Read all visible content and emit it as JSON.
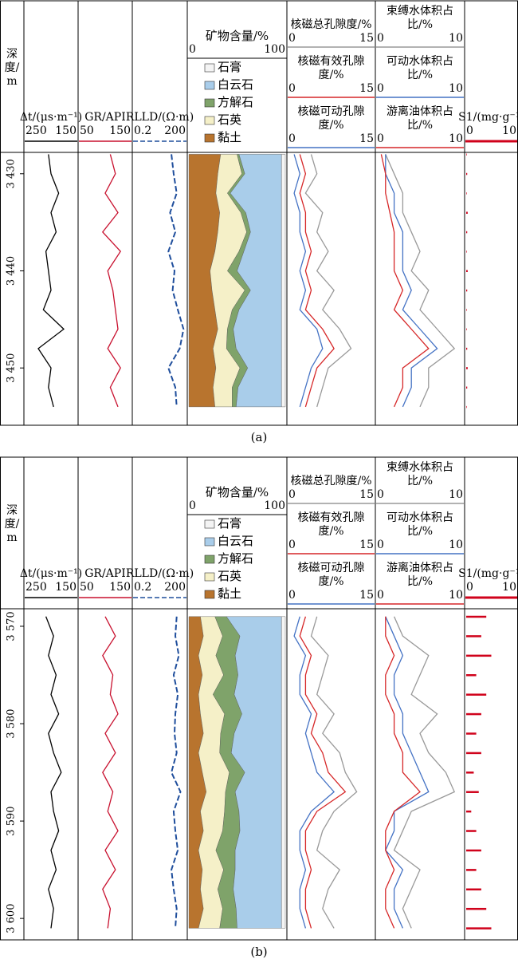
{
  "chart_data": [
    {
      "type": "well_log",
      "caption": "(a)",
      "depth_label": "深度/m",
      "ylim": [
        3427.8,
        3455.9
      ],
      "yticks": [
        {
          "value": 3430,
          "label": "3 430"
        },
        {
          "value": 3440,
          "label": "3 440"
        },
        {
          "value": 3450,
          "label": "3 450"
        }
      ],
      "depths": [
        3428,
        3430,
        3432,
        3434,
        3436,
        3438,
        3440,
        3442,
        3444,
        3446,
        3448,
        3450,
        3452,
        3454
      ],
      "tracks": [
        {
          "type": "line",
          "xlim": [
            250,
            150
          ],
          "series": [
            {
              "name": "Δt/(μs·m⁻¹)",
              "color": "#000000",
              "values": [
                205,
                200,
                185,
                200,
                190,
                210,
                205,
                200,
                215,
                175,
                225,
                200,
                205,
                195
              ]
            }
          ]
        },
        {
          "type": "line",
          "xlim": [
            50,
            150
          ],
          "series": [
            {
              "name": "GR/API",
              "color": "#c8102e",
              "values": [
                110,
                120,
                100,
                125,
                95,
                130,
                105,
                115,
                120,
                125,
                105,
                130,
                110,
                125
              ]
            }
          ]
        },
        {
          "type": "line",
          "xlim": [
            0.2,
            200
          ],
          "log_scale": true,
          "series": [
            {
              "name": "RLLD/(Ω·m)",
              "color": "#1f4e9c",
              "dash": true,
              "values": [
                30,
                40,
                60,
                25,
                50,
                20,
                45,
                35,
                70,
                150,
                90,
                20,
                50,
                60
              ]
            }
          ]
        },
        {
          "type": "stacked_area",
          "title": "矿物含量/%",
          "xlim": [
            0,
            100
          ],
          "series": [
            {
              "name": "黏土",
              "color": "#b8742e",
              "values": [
                33,
                30,
                28,
                32,
                30,
                27,
                22,
                24,
                27,
                30,
                25,
                28,
                25,
                27
              ]
            },
            {
              "name": "石英",
              "color": "#f5f0c8",
              "values": [
                17,
                25,
                12,
                22,
                30,
                25,
                18,
                34,
                18,
                10,
                14,
                25,
                20,
                18
              ]
            },
            {
              "name": "方解石",
              "color": "#7fa36a",
              "values": [
                2,
                3,
                3,
                5,
                4,
                5,
                10,
                6,
                7,
                6,
                10,
                8,
                6,
                4
              ]
            },
            {
              "name": "白云石",
              "color": "#a9cdea",
              "values": [
                44,
                38,
                53,
                37,
                32,
                39,
                46,
                32,
                44,
                50,
                47,
                35,
                45,
                47
              ]
            },
            {
              "name": "石膏",
              "color": "#f4f4f4",
              "values": [
                4,
                4,
                4,
                4,
                4,
                4,
                4,
                4,
                4,
                4,
                4,
                4,
                4,
                4
              ]
            }
          ]
        },
        {
          "type": "line",
          "xlim": [
            0,
            15
          ],
          "series": [
            {
              "name": "核磁总孔隙度/%",
              "color": "#999999",
              "values": [
                4,
                5,
                3,
                6,
                5,
                7,
                5,
                8,
                6,
                9,
                11,
                7,
                6,
                5
              ]
            },
            {
              "name": "核磁有效孔隙度/%",
              "color": "#d62728",
              "values": [
                2,
                3,
                2,
                3,
                3,
                4,
                3,
                4,
                3,
                6,
                8,
                5,
                4,
                3
              ]
            },
            {
              "name": "核磁可动孔隙度/%",
              "color": "#4472c4",
              "values": [
                1,
                2,
                1,
                2,
                2,
                3,
                2,
                3,
                2,
                5,
                6,
                4,
                3,
                2
              ]
            }
          ]
        },
        {
          "type": "line",
          "xlim": [
            0,
            10
          ],
          "series": [
            {
              "name": "束缚水体积占比/%",
              "color": "#999999",
              "values": [
                1,
                2,
                3,
                3,
                4,
                5,
                4,
                6,
                5,
                7,
                9,
                6,
                6,
                5
              ]
            },
            {
              "name": "可动水体积占比/%",
              "color": "#4472c4",
              "values": [
                1,
                1,
                2,
                2,
                3,
                3,
                3,
                4,
                3,
                5,
                7,
                4,
                4,
                3
              ]
            },
            {
              "name": "游离油体积占比/%",
              "color": "#d62728",
              "values": [
                0.5,
                1,
                1,
                1.5,
                2,
                2,
                2,
                3,
                2,
                4,
                6,
                3,
                3,
                2
              ]
            }
          ]
        },
        {
          "type": "bar",
          "xlim": [
            0,
            10
          ],
          "series": [
            {
              "name": "S1/(mg·g⁻¹)",
              "color": "#d0021b",
              "values": [
                0.1,
                0.2,
                0.1,
                0.3,
                0.2,
                0.1,
                0.3,
                0.2,
                0.1,
                0.1,
                0.2,
                0.3,
                0.2,
                0.1
              ]
            }
          ]
        }
      ]
    },
    {
      "type": "well_log",
      "caption": "(b)",
      "depth_label": "深度/m",
      "ylim": [
        3568.2,
        3602.2
      ],
      "yticks": [
        {
          "value": 3570,
          "label": "3 570"
        },
        {
          "value": 3580,
          "label": "3 580"
        },
        {
          "value": 3590,
          "label": "3 590"
        },
        {
          "value": 3600,
          "label": "3 600"
        }
      ],
      "depths": [
        3569,
        3571,
        3573,
        3575,
        3577,
        3579,
        3581,
        3583,
        3585,
        3587,
        3589,
        3591,
        3593,
        3595,
        3597,
        3599,
        3601
      ],
      "tracks": [
        {
          "type": "line",
          "xlim": [
            250,
            150
          ],
          "series": [
            {
              "name": "Δt/(μs·m⁻¹)",
              "color": "#000000",
              "values": [
                210,
                195,
                205,
                190,
                200,
                185,
                205,
                195,
                180,
                200,
                195,
                185,
                200,
                190,
                205,
                195,
                200
              ]
            }
          ]
        },
        {
          "type": "line",
          "xlim": [
            50,
            150
          ],
          "series": [
            {
              "name": "GR/API",
              "color": "#c8102e",
              "values": [
                100,
                120,
                95,
                115,
                110,
                125,
                100,
                120,
                95,
                115,
                105,
                125,
                100,
                120,
                95,
                110,
                105
              ]
            }
          ]
        },
        {
          "type": "line",
          "xlim": [
            0.2,
            200
          ],
          "log_scale": true,
          "series": [
            {
              "name": "RLLD/(Ω·m)",
              "color": "#1f4e9c",
              "dash": true,
              "values": [
                60,
                50,
                80,
                40,
                70,
                50,
                45,
                60,
                30,
                100,
                40,
                50,
                70,
                30,
                40,
                60,
                50
              ]
            }
          ]
        },
        {
          "type": "stacked_area",
          "title": "矿物含量/%",
          "xlim": [
            0,
            100
          ],
          "series": [
            {
              "name": "黏土",
              "color": "#b8742e",
              "values": [
                12,
                15,
                10,
                14,
                10,
                12,
                15,
                10,
                14,
                18,
                12,
                15,
                10,
                14,
                12,
                15,
                10
              ]
            },
            {
              "name": "石英",
              "color": "#f5f0c8",
              "values": [
                15,
                20,
                18,
                22,
                15,
                25,
                18,
                22,
                28,
                20,
                25,
                20,
                18,
                22,
                18,
                20,
                22
              ]
            },
            {
              "name": "方解石",
              "color": "#7fa36a",
              "values": [
                12,
                18,
                20,
                15,
                22,
                18,
                14,
                12,
                16,
                10,
                15,
                18,
                20,
                12,
                16,
                14,
                18
              ]
            },
            {
              "name": "白云石",
              "color": "#a9cdea",
              "values": [
                57,
                43,
                48,
                45,
                49,
                41,
                49,
                52,
                38,
                48,
                44,
                43,
                48,
                48,
                50,
                47,
                46
              ]
            },
            {
              "name": "石膏",
              "color": "#f4f4f4",
              "values": [
                4,
                4,
                4,
                4,
                4,
                4,
                4,
                4,
                4,
                4,
                4,
                4,
                4,
                4,
                4,
                4,
                4
              ]
            }
          ]
        },
        {
          "type": "line",
          "xlim": [
            0,
            15
          ],
          "series": [
            {
              "name": "核磁总孔隙度/%",
              "color": "#999999",
              "values": [
                5,
                4,
                7,
                6,
                5,
                8,
                6,
                9,
                10,
                12,
                8,
                6,
                5,
                9,
                7,
                6,
                8
              ]
            },
            {
              "name": "核磁有效孔隙度/%",
              "color": "#d62728",
              "values": [
                3,
                2,
                4,
                3,
                3,
                5,
                4,
                6,
                7,
                10,
                5,
                3,
                3,
                4,
                3,
                3,
                4
              ]
            },
            {
              "name": "核磁可动孔隙度/%",
              "color": "#4472c4",
              "values": [
                2,
                1,
                3,
                2,
                2,
                4,
                3,
                4,
                5,
                8,
                4,
                2,
                2,
                3,
                2,
                2,
                3
              ]
            }
          ]
        },
        {
          "type": "line",
          "xlim": [
            0,
            10
          ],
          "series": [
            {
              "name": "束缚水体积占比/%",
              "color": "#999999",
              "values": [
                2,
                3,
                6,
                5,
                4,
                7,
                5,
                6,
                8,
                9,
                4,
                3,
                2,
                5,
                4,
                3,
                4
              ]
            },
            {
              "name": "可动水体积占比/%",
              "color": "#4472c4",
              "values": [
                1,
                2,
                3,
                2,
                2,
                3,
                3,
                4,
                5,
                6,
                2,
                2,
                1,
                3,
                2,
                2,
                3
              ]
            },
            {
              "name": "游离油体积占比/%",
              "color": "#d62728",
              "values": [
                1,
                1,
                2,
                1,
                1,
                2,
                2,
                3,
                3,
                5,
                2,
                1,
                1,
                2,
                1,
                1,
                2
              ]
            }
          ]
        },
        {
          "type": "bar",
          "xlim": [
            0,
            10
          ],
          "series": [
            {
              "name": "S1/(mg·g⁻¹)",
              "color": "#d0021b",
              "values": [
                4,
                3,
                5,
                2,
                4,
                3,
                2,
                3,
                1.5,
                2.5,
                1,
                2,
                3,
                2,
                3,
                4,
                5
              ]
            }
          ]
        }
      ]
    }
  ]
}
